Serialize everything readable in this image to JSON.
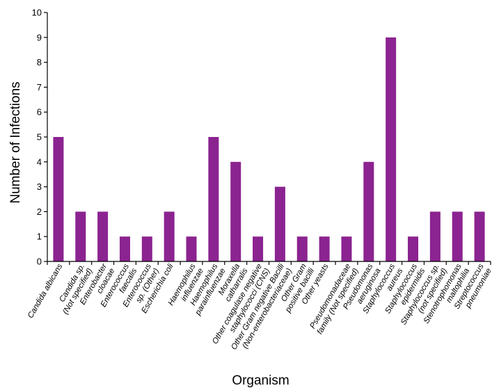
{
  "chart_data": {
    "type": "bar",
    "title": "",
    "xlabel": "Organism",
    "ylabel": "Number of Infections",
    "ylim": [
      0,
      10
    ],
    "yticks": [
      0,
      1,
      2,
      3,
      4,
      5,
      6,
      7,
      8,
      9,
      10
    ],
    "grid": false,
    "legend": "none",
    "bar_color": "#8B2390",
    "categories": [
      [
        "Candida albicans"
      ],
      [
        "Candida sp.",
        "(Not specified)"
      ],
      [
        "Enterobacter",
        "cloacae"
      ],
      [
        "Enterococcus",
        "faecalis"
      ],
      [
        "Enterococcus",
        "sp. (Other)"
      ],
      [
        "Escherichia coli"
      ],
      [
        "Haemophilus",
        "influenzae"
      ],
      [
        "Haemophilus",
        "parainfluenzae"
      ],
      [
        "Moraxella",
        "catharralis"
      ],
      [
        "Other coagulase negative",
        "staphylococci (CNS)"
      ],
      [
        "Other Gram negative Bacilli",
        "(Non-enterobacteriaceae)"
      ],
      [
        "Other Gram",
        "positive bacilli"
      ],
      [
        "Other yeasts"
      ],
      [
        "Pseudomonadaceae",
        "family (Not specified)"
      ],
      [
        "Pseudomonas",
        "aeruginosa"
      ],
      [
        "Staphylococcus",
        "aureus"
      ],
      [
        "Staphylococcus",
        "epidermidis"
      ],
      [
        "Staphylococcus sp.",
        "(not specified)"
      ],
      [
        "Stenotrophomonas",
        "maltophilia"
      ],
      [
        "Streptococcus",
        "pneumoniae"
      ]
    ],
    "values": [
      5,
      2,
      2,
      1,
      1,
      2,
      1,
      5,
      4,
      1,
      3,
      1,
      1,
      1,
      4,
      9,
      1,
      2,
      2,
      2
    ]
  }
}
